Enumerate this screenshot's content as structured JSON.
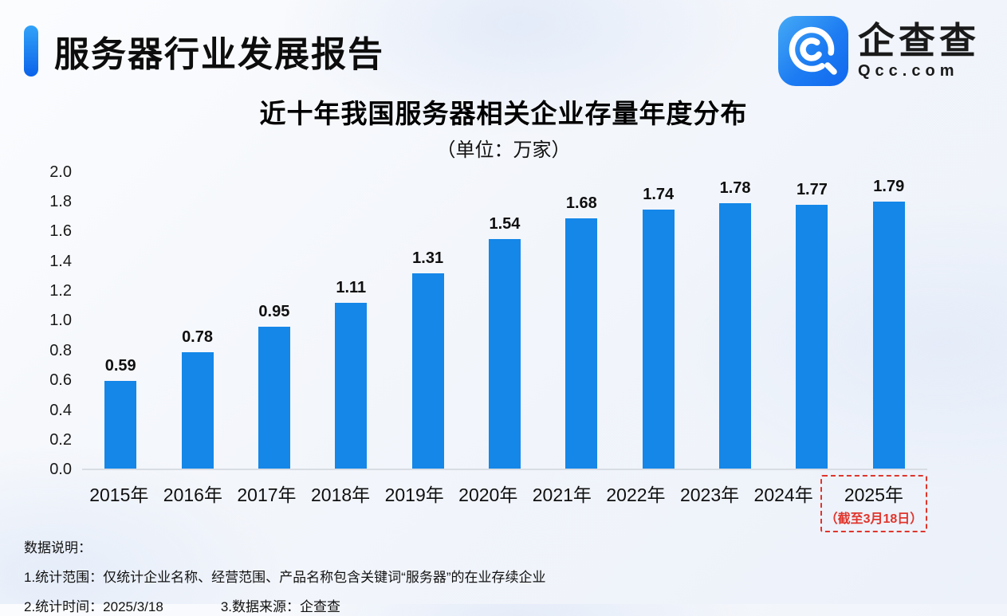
{
  "header": {
    "title": "服务器行业发展报告",
    "logo": {
      "name": "企查查",
      "domain": "Qcc.com",
      "icon": "qcc-magnifier-icon",
      "icon_color": "#1E7CF2"
    }
  },
  "chart_data": {
    "type": "bar",
    "title": "近十年我国服务器相关企业存量年度分布",
    "subtitle": "（单位：万家）",
    "categories": [
      "2015年",
      "2016年",
      "2017年",
      "2018年",
      "2019年",
      "2020年",
      "2021年",
      "2022年",
      "2023年",
      "2024年",
      "2025年"
    ],
    "values": [
      0.59,
      0.78,
      0.95,
      1.11,
      1.31,
      1.54,
      1.68,
      1.74,
      1.78,
      1.77,
      1.79
    ],
    "ylim": [
      0,
      2.0
    ],
    "yticks": [
      "2.0",
      "1.8",
      "1.6",
      "1.4",
      "1.2",
      "1.0",
      "0.8",
      "0.6",
      "0.4",
      "0.2",
      "0.0"
    ],
    "grid": false,
    "legend": false,
    "bar_color": "#1487E8",
    "value_label_color": "#0f0f0f",
    "highlight": {
      "category": "2025年",
      "note": "（截至3月18日）",
      "color": "#E0352C"
    }
  },
  "footer": {
    "heading": "数据说明：",
    "note_scope": "1.统计范围：仅统计企业名称、经营范围、产品名称包含关键词“服务器”的在业存续企业",
    "note_time": "2.统计时间：2025/3/18",
    "note_source": "3.数据来源：企查查"
  }
}
